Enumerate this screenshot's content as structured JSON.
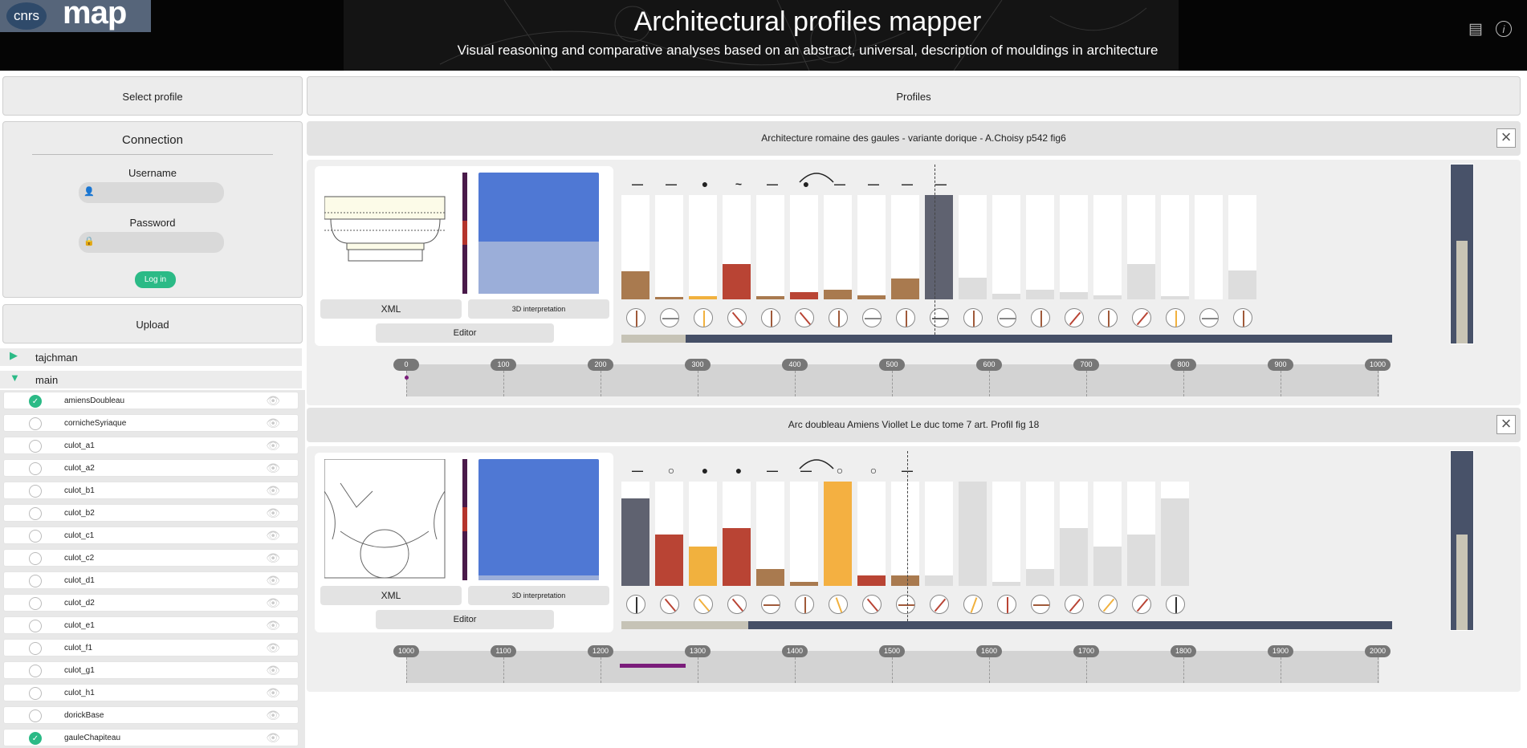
{
  "header": {
    "logo_left": "cnrs",
    "logo_right": "map",
    "title": "Architectural profiles mapper",
    "subtitle": "Visual reasoning and comparative analyses based on an abstract, universal, description of mouldings in architecture",
    "icons": [
      "document-icon",
      "info-icon"
    ]
  },
  "sidebar": {
    "select_profile": "Select profile",
    "connection": {
      "title": "Connection",
      "username_label": "Username",
      "username_value": "",
      "password_label": "Password",
      "password_value": "",
      "login_label": "Log in"
    },
    "upload_label": "Upload",
    "folders": [
      {
        "label": "tajchman",
        "expanded": false
      },
      {
        "label": "main",
        "expanded": true
      }
    ],
    "items": [
      {
        "name": "amiensDoubleau",
        "checked": true
      },
      {
        "name": "cornicheSyriaque",
        "checked": false
      },
      {
        "name": "culot_a1",
        "checked": false
      },
      {
        "name": "culot_a2",
        "checked": false
      },
      {
        "name": "culot_b1",
        "checked": false
      },
      {
        "name": "culot_b2",
        "checked": false
      },
      {
        "name": "culot_c1",
        "checked": false
      },
      {
        "name": "culot_c2",
        "checked": false
      },
      {
        "name": "culot_d1",
        "checked": false
      },
      {
        "name": "culot_d2",
        "checked": false
      },
      {
        "name": "culot_e1",
        "checked": false
      },
      {
        "name": "culot_f1",
        "checked": false
      },
      {
        "name": "culot_g1",
        "checked": false
      },
      {
        "name": "culot_h1",
        "checked": false
      },
      {
        "name": "dorickBase",
        "checked": false
      },
      {
        "name": "gauleChapiteau",
        "checked": true
      }
    ]
  },
  "main": {
    "profiles_label": "Profiles",
    "cards": [
      {
        "title": "Architecture romaine des gaules - variante dorique - A.Choisy p542 fig6",
        "xml_label": "XML",
        "interp_label": "3D interpretation",
        "editor_label": "Editor",
        "symbols": [
          "—",
          "—",
          "●",
          "~",
          "—",
          "●",
          "—",
          "—",
          "—",
          "—"
        ],
        "bars": [
          0.27,
          0.02,
          0.03,
          0.34,
          0.03,
          0.07,
          0.09,
          0.04,
          0.2,
          1.0,
          0.21,
          0.05,
          0.09,
          0.07,
          0.04,
          0.34,
          0.03,
          0.0,
          0.28
        ],
        "bar_colors": [
          "#a97a4f",
          "#a97a4f",
          "#f1b13e",
          "#b94434",
          "#a97a4f",
          "#b94434",
          "#a97a4f",
          "#a97a4f",
          "#a97a4f",
          "#5f6270",
          "#ddd",
          "#ddd",
          "#ddd",
          "#ddd",
          "#ddd",
          "#ddd",
          "#ddd",
          "#ddd",
          "#ddd"
        ],
        "dials": [
          {
            "angle": 0,
            "color": "#a05a3a"
          },
          {
            "angle": 90,
            "color": "#888"
          },
          {
            "angle": 0,
            "color": "#f1b13e"
          },
          {
            "angle": -40,
            "color": "#b94434"
          },
          {
            "angle": 0,
            "color": "#a05a3a"
          },
          {
            "angle": -40,
            "color": "#b94434"
          },
          {
            "angle": 0,
            "color": "#a05a3a"
          },
          {
            "angle": 90,
            "color": "#888"
          },
          {
            "angle": 0,
            "color": "#a05a3a"
          },
          {
            "angle": 90,
            "color": "#666"
          },
          {
            "angle": 0,
            "color": "#a05a3a"
          },
          {
            "angle": 90,
            "color": "#888"
          },
          {
            "angle": 0,
            "color": "#a05a3a"
          },
          {
            "angle": 40,
            "color": "#b94434"
          },
          {
            "angle": 0,
            "color": "#a05a3a"
          },
          {
            "angle": 40,
            "color": "#b94434"
          },
          {
            "angle": 0,
            "color": "#f1b13e"
          },
          {
            "angle": 90,
            "color": "#888"
          },
          {
            "angle": 0,
            "color": "#a05a3a"
          }
        ],
        "progress": 0.083,
        "timeline_ticks": [
          "0",
          "100",
          "200",
          "300",
          "400",
          "500",
          "600",
          "700",
          "800",
          "900",
          "1000"
        ],
        "timeline_range": [
          0,
          1000
        ],
        "event_start": 0,
        "event_end": 0,
        "gauge": 0.57
      },
      {
        "title": "Arc doubleau Amiens Viollet Le duc tome 7 art. Profil fig 18",
        "xml_label": "XML",
        "interp_label": "3D interpretation",
        "editor_label": "Editor",
        "symbols": [
          "—",
          "○",
          "●",
          "●",
          "—",
          "—",
          "○",
          "○",
          "—"
        ],
        "bars": [
          0.84,
          0.49,
          0.38,
          0.55,
          0.16,
          0.04,
          1.0,
          0.1,
          0.1,
          0.1,
          1.0,
          0.04,
          0.16,
          0.55,
          0.38,
          0.49,
          0.84
        ],
        "bar_colors": [
          "#5f6270",
          "#b94434",
          "#f1b13e",
          "#b94434",
          "#a97a4f",
          "#a97a4f",
          "#f4b041",
          "#b94434",
          "#a97a4f",
          "#ddd",
          "#ddd",
          "#ddd",
          "#ddd",
          "#ddd",
          "#ddd",
          "#ddd",
          "#ddd"
        ],
        "dials": [
          {
            "angle": 0,
            "color": "#333"
          },
          {
            "angle": -40,
            "color": "#b94434"
          },
          {
            "angle": -40,
            "color": "#f1b13e"
          },
          {
            "angle": -40,
            "color": "#b94434"
          },
          {
            "angle": 90,
            "color": "#a05a3a"
          },
          {
            "angle": 0,
            "color": "#a05a3a"
          },
          {
            "angle": -20,
            "color": "#f1b13e"
          },
          {
            "angle": -40,
            "color": "#b94434"
          },
          {
            "angle": 90,
            "color": "#a05a3a"
          },
          {
            "angle": 40,
            "color": "#b94434"
          },
          {
            "angle": 20,
            "color": "#f1b13e"
          },
          {
            "angle": 0,
            "color": "#b94434"
          },
          {
            "angle": 90,
            "color": "#a05a3a"
          },
          {
            "angle": 40,
            "color": "#b94434"
          },
          {
            "angle": 40,
            "color": "#f1b13e"
          },
          {
            "angle": 40,
            "color": "#b94434"
          },
          {
            "angle": 0,
            "color": "#333"
          }
        ],
        "progress": 0.165,
        "timeline_ticks": [
          "1000",
          "1100",
          "1200",
          "1300",
          "1400",
          "1500",
          "1600",
          "1700",
          "1800",
          "1900",
          "2000"
        ],
        "timeline_range": [
          1000,
          2000
        ],
        "event_start": 1220,
        "event_end": 1288,
        "gauge": 0.53
      }
    ]
  }
}
